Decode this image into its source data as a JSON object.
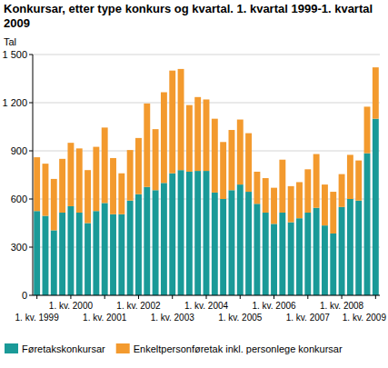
{
  "chart_data": {
    "type": "bar",
    "stacked": true,
    "grid": true,
    "legend": "bottom",
    "title": "Konkursar, etter type konkurs og kvartal. 1. kvartal 1999-1. kvartal 2009",
    "y_label": "Tal",
    "categories": [
      "1. kv. 1999",
      null,
      null,
      null,
      "1. kv. 2000",
      null,
      null,
      null,
      "1. kv. 2001",
      null,
      null,
      null,
      "1. kv. 2002",
      null,
      null,
      null,
      "1. kv. 2003",
      null,
      null,
      null,
      "1. kv. 2004",
      null,
      null,
      null,
      "1. kv. 2005",
      null,
      null,
      null,
      "1. kv. 2006",
      null,
      null,
      null,
      "1. kv. 2007",
      null,
      null,
      null,
      "1. kv. 2008",
      null,
      null,
      null,
      "1. kv. 2009"
    ],
    "series": [
      {
        "name": "Føretakskonkursar",
        "color": "#1a9a98",
        "values": [
          525,
          495,
          405,
          515,
          555,
          515,
          450,
          525,
          575,
          505,
          505,
          590,
          630,
          675,
          655,
          700,
          760,
          780,
          770,
          775,
          775,
          640,
          600,
          655,
          690,
          645,
          570,
          515,
          445,
          515,
          455,
          480,
          515,
          545,
          435,
          385,
          550,
          600,
          590,
          885,
          1100
        ]
      },
      {
        "name": "Enkeltpersonføretak inkl. personlege konkursar",
        "color": "#f39a2e",
        "values": [
          335,
          325,
          320,
          335,
          395,
          400,
          330,
          400,
          470,
          350,
          255,
          315,
          350,
          520,
          380,
          565,
          640,
          630,
          415,
          460,
          445,
          460,
          355,
          375,
          405,
          365,
          200,
          215,
          225,
          330,
          225,
          225,
          270,
          335,
          255,
          260,
          205,
          275,
          250,
          290,
          320
        ]
      }
    ],
    "ylim": [
      0,
      1500
    ],
    "yticks": [
      0,
      300,
      600,
      900,
      {
        "value": 1200,
        "label": "1 200"
      },
      {
        "value": 1500,
        "label": "1 500"
      }
    ]
  }
}
